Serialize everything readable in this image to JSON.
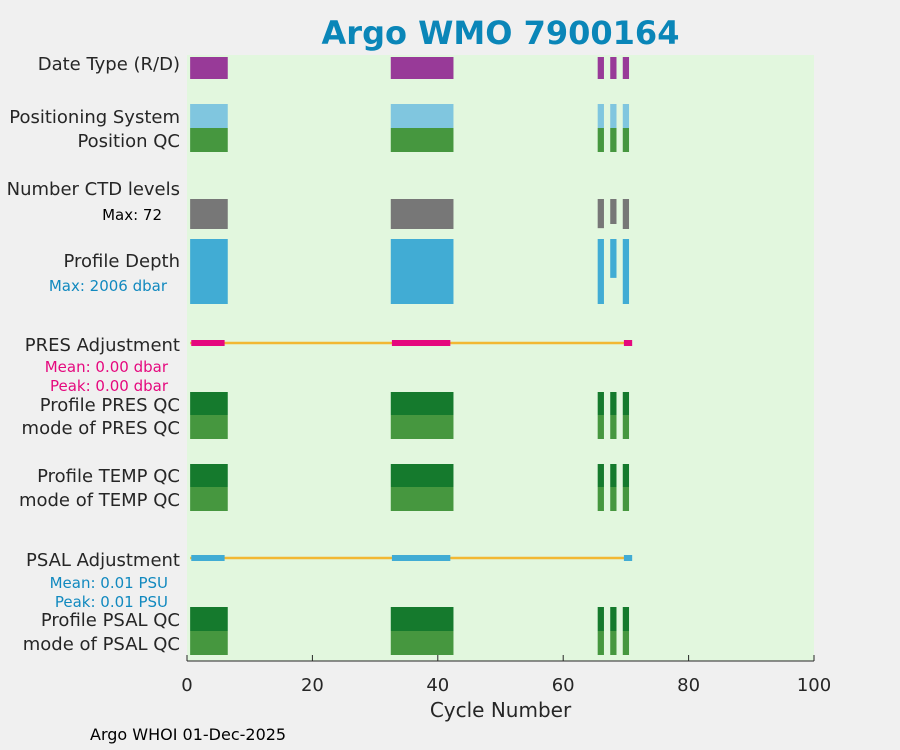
{
  "chart_data": {
    "type": "bar",
    "title": "Argo WMO 7900164",
    "xlabel": "Cycle Number",
    "xlim": [
      0,
      100
    ],
    "xticks": [
      0,
      20,
      40,
      60,
      80,
      100
    ],
    "background": "#e2f7de",
    "rows": [
      {
        "key": "date_type",
        "label": "Date Type (R/D)",
        "color": "#983a98",
        "segments": [
          [
            0.5,
            6.5
          ],
          [
            32.5,
            42.5
          ],
          [
            65.5,
            66.5
          ],
          [
            67.5,
            68.5
          ],
          [
            69.5,
            70.5
          ]
        ]
      },
      {
        "key": "positioning_system",
        "label": "Positioning System",
        "color": "#80c6df",
        "segments": [
          [
            0.5,
            6.5
          ],
          [
            32.5,
            42.5
          ],
          [
            65.5,
            66.5
          ],
          [
            67.5,
            68.5
          ],
          [
            69.5,
            70.5
          ]
        ]
      },
      {
        "key": "position_qc",
        "label": "Position QC",
        "color": "#46973f",
        "segments": [
          [
            0.5,
            6.5
          ],
          [
            32.5,
            42.5
          ],
          [
            65.5,
            66.5
          ],
          [
            67.5,
            68.5
          ],
          [
            69.5,
            70.5
          ]
        ]
      },
      {
        "key": "ctd_levels",
        "label": "Number CTD levels",
        "sublabel": "Max: 72",
        "sublabel_color": "#000000",
        "color": "#777777",
        "bars": [
          [
            0.5,
            6.5,
            72
          ],
          [
            32.5,
            42.5,
            72
          ],
          [
            65.5,
            66.5,
            70
          ],
          [
            67.5,
            68.5,
            60
          ],
          [
            69.5,
            70.5,
            72
          ]
        ]
      },
      {
        "key": "profile_depth",
        "label": "Profile Depth",
        "sublabel": "Max: 2006 dbar",
        "sublabel_color": "#1189bf",
        "color": "#41acd4",
        "bars": [
          [
            0.5,
            6.5,
            2006
          ],
          [
            32.5,
            42.5,
            2006
          ],
          [
            65.5,
            66.5,
            2006
          ],
          [
            67.5,
            68.5,
            1200
          ],
          [
            69.5,
            70.5,
            2006
          ]
        ]
      },
      {
        "key": "pres_adjustment",
        "label": "PRES Adjustment",
        "line_color": "#f2b833",
        "line_range": [
          0.5,
          70.5
        ],
        "adj_color": "#e5087e",
        "adj_segments": [
          [
            1,
            6
          ],
          [
            33,
            42
          ],
          [
            70,
            71
          ]
        ],
        "mean": "Mean: 0.00 dbar",
        "peak": "Peak: 0.00 dbar",
        "stat_color": "#e5087e"
      },
      {
        "key": "profile_pres_qc",
        "label": "Profile PRES QC",
        "color": "#157a2d",
        "segments": [
          [
            0.5,
            6.5
          ],
          [
            32.5,
            42.5
          ],
          [
            65.5,
            66.5
          ],
          [
            67.5,
            68.5
          ],
          [
            69.5,
            70.5
          ]
        ]
      },
      {
        "key": "mode_pres_qc",
        "label": "mode of PRES QC",
        "color": "#46973f",
        "segments": [
          [
            0.5,
            6.5
          ],
          [
            32.5,
            42.5
          ],
          [
            65.5,
            66.5
          ],
          [
            67.5,
            68.5
          ],
          [
            69.5,
            70.5
          ]
        ]
      },
      {
        "key": "profile_temp_qc",
        "label": "Profile TEMP QC",
        "color": "#157a2d",
        "segments": [
          [
            0.5,
            6.5
          ],
          [
            32.5,
            42.5
          ],
          [
            65.5,
            66.5
          ],
          [
            67.5,
            68.5
          ],
          [
            69.5,
            70.5
          ]
        ]
      },
      {
        "key": "mode_temp_qc",
        "label": "mode of TEMP QC",
        "color": "#46973f",
        "segments": [
          [
            0.5,
            6.5
          ],
          [
            32.5,
            42.5
          ],
          [
            65.5,
            66.5
          ],
          [
            67.5,
            68.5
          ],
          [
            69.5,
            70.5
          ]
        ]
      },
      {
        "key": "psal_adjustment",
        "label": "PSAL Adjustment",
        "line_color": "#f2b833",
        "line_range": [
          0.5,
          70.5
        ],
        "adj_color": "#41acd4",
        "adj_segments": [
          [
            1,
            6
          ],
          [
            33,
            42
          ],
          [
            70,
            71
          ]
        ],
        "mean": "Mean: 0.01 PSU",
        "peak": "Peak: 0.01 PSU",
        "stat_color": "#1189bf"
      },
      {
        "key": "profile_psal_qc",
        "label": "Profile PSAL QC",
        "color": "#157a2d",
        "segments": [
          [
            0.5,
            6.5
          ],
          [
            32.5,
            42.5
          ],
          [
            65.5,
            66.5
          ],
          [
            67.5,
            68.5
          ],
          [
            69.5,
            70.5
          ]
        ]
      },
      {
        "key": "mode_psal_qc",
        "label": "mode of PSAL QC",
        "color": "#46973f",
        "segments": [
          [
            0.5,
            6.5
          ],
          [
            32.5,
            42.5
          ],
          [
            65.5,
            66.5
          ],
          [
            67.5,
            68.5
          ],
          [
            69.5,
            70.5
          ]
        ]
      }
    ]
  },
  "footer": "Argo WHOI 01-Dec-2025"
}
